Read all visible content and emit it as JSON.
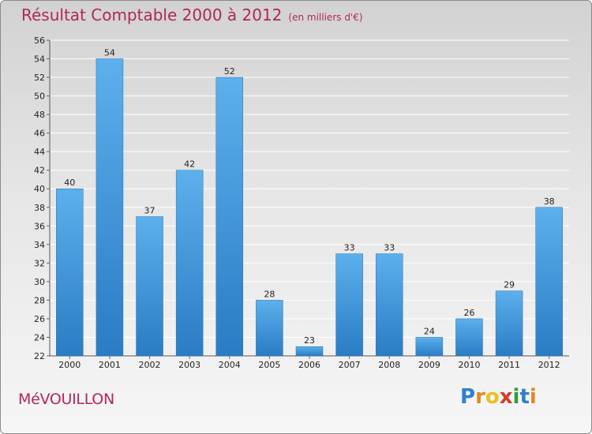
{
  "chart_data": {
    "type": "bar",
    "title": "Résultat Comptable 2000 à 2012",
    "subtitle": "(en milliers d'€)",
    "categories": [
      "2000",
      "2001",
      "2002",
      "2003",
      "2004",
      "2005",
      "2006",
      "2007",
      "2008",
      "2009",
      "2010",
      "2011",
      "2012"
    ],
    "values": [
      40,
      54,
      37,
      42,
      52,
      28,
      23,
      33,
      33,
      24,
      26,
      29,
      38
    ],
    "ylim": [
      22,
      56
    ],
    "yticks": [
      22,
      24,
      26,
      28,
      30,
      32,
      34,
      36,
      38,
      40,
      42,
      44,
      46,
      48,
      50,
      52,
      54,
      56
    ],
    "grid": true,
    "bar_color": "#3a8fd6"
  },
  "commune": "MéVOUILLON",
  "logo": {
    "letters": [
      "P",
      "r",
      "o",
      "x",
      "i",
      "t",
      "i"
    ],
    "colors": [
      "#2f7fd0",
      "#e08a1e",
      "#e8c21c",
      "#d43a2a",
      "#2f9e3a",
      "#2f7fd0",
      "#e08a1e"
    ]
  },
  "colors": {
    "title": "#b0285a",
    "accent": "#3a8fd6"
  }
}
